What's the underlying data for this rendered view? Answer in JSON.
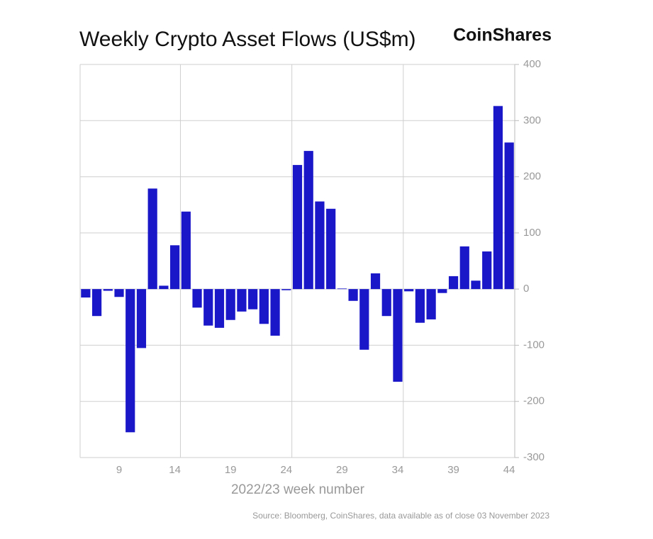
{
  "chart_data": {
    "type": "bar",
    "title": "Weekly Crypto Asset Flows (US$m)",
    "brand": "CoinShares",
    "xlabel": "2022/23 week number",
    "source": "Source: Bloomberg, CoinShares, data available as of close 03 November 2023",
    "x": [
      6,
      7,
      8,
      9,
      10,
      11,
      12,
      13,
      14,
      15,
      16,
      17,
      18,
      19,
      20,
      21,
      22,
      23,
      24,
      25,
      26,
      27,
      28,
      29,
      30,
      31,
      32,
      33,
      34,
      35,
      36,
      37,
      38,
      39,
      40,
      41,
      42,
      43,
      44
    ],
    "values": [
      -15,
      -48,
      -3,
      -14,
      -255,
      -105,
      179,
      6,
      78,
      138,
      -33,
      -65,
      -69,
      -55,
      -40,
      -36,
      -62,
      -83,
      -2,
      221,
      246,
      156,
      143,
      1,
      -21,
      -108,
      28,
      -48,
      -165,
      -4,
      -60,
      -54,
      -7,
      23,
      76,
      15,
      67,
      326,
      261
    ],
    "color": "#1a17c9",
    "xlim": [
      5.5,
      44.5
    ],
    "xticks": [
      9,
      14,
      19,
      24,
      29,
      34,
      39,
      44
    ],
    "x_gridlines": [
      14.5,
      24.5,
      34.5
    ],
    "ylim": [
      -300,
      400
    ],
    "yticks": [
      -300,
      -200,
      -100,
      0,
      100,
      200,
      300,
      400
    ],
    "grid": true,
    "y_axis_side": "right"
  }
}
